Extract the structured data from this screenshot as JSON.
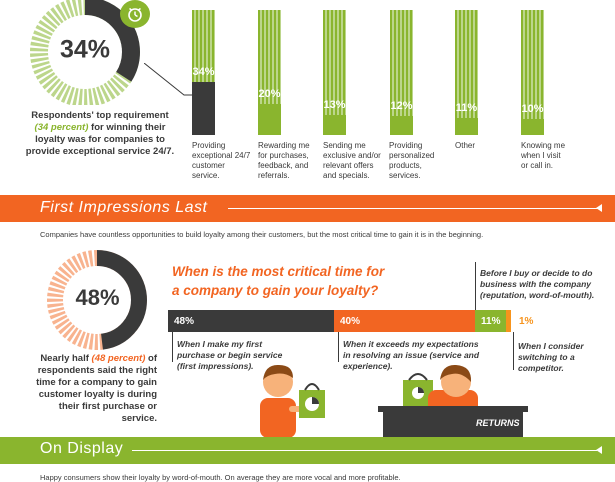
{
  "top": {
    "donut_value": "34%",
    "donut_fraction": 0.34,
    "caption_pre": "Respondents' top requirement",
    "caption_highlight": "(34 percent)",
    "caption_post": "for winning their loyalty was for companies to provide exceptional service 24/7.",
    "clock_icon": "clock-icon"
  },
  "chart_data": {
    "type": "bar",
    "categories": [
      "Providing exceptional 24/7 customer service.",
      "Rewarding me for purchases, feedback, and referrals.",
      "Sending me exclusive and/or relevant offers and specials.",
      "Providing personalized products, services.",
      "Other",
      "Knowing me when I visit or call in."
    ],
    "labels": [
      "34%",
      "20%",
      "13%",
      "12%",
      "11%",
      "10%"
    ],
    "values": [
      34,
      20,
      13,
      12,
      11,
      10
    ],
    "ylim": [
      0,
      100
    ]
  },
  "section1": {
    "title": "First Impressions Last",
    "intro": "Companies have countless opportunities to build loyalty among their customers, but the most critical time to gain it is in the beginning."
  },
  "middle": {
    "donut_value": "48%",
    "donut_fraction": 0.48,
    "caption_pre": "Nearly half",
    "caption_highlight": "(48 percent)",
    "caption_post": "of respondents said the right time for a company to gain customer loyalty is during their first purchase or service.",
    "question_line1": "When is the most critical time for",
    "question_line2": "a company to gain your loyalty?",
    "segments": [
      {
        "label": "48%",
        "value": 48,
        "color": "#3a3a3a"
      },
      {
        "label": "40%",
        "value": 40,
        "color": "#f26522"
      },
      {
        "label": "11%",
        "value": 11,
        "color": "#8ab52e"
      },
      {
        "label": "1%",
        "value": 1,
        "color": "#f7941d"
      }
    ],
    "opt1": "When I make my first purchase or begin service (first impressions).",
    "opt2": "When it exceeds my expectations in resolving an issue (service and experience).",
    "opt3": "Before I buy or decide to do business with the company (reputation, word-of-mouth).",
    "opt4": "When I consider switching to a competitor.",
    "returns_label": "RETURNS"
  },
  "section2": {
    "title": "On Display",
    "intro": "Happy consumers show their loyalty by word-of-mouth. On average they are more vocal and more profitable."
  },
  "colors": {
    "green": "#8ab52e",
    "light_green": "#bcd68b",
    "dark": "#3a3a3a",
    "orange": "#f26522",
    "light_orange": "#f7941d"
  }
}
